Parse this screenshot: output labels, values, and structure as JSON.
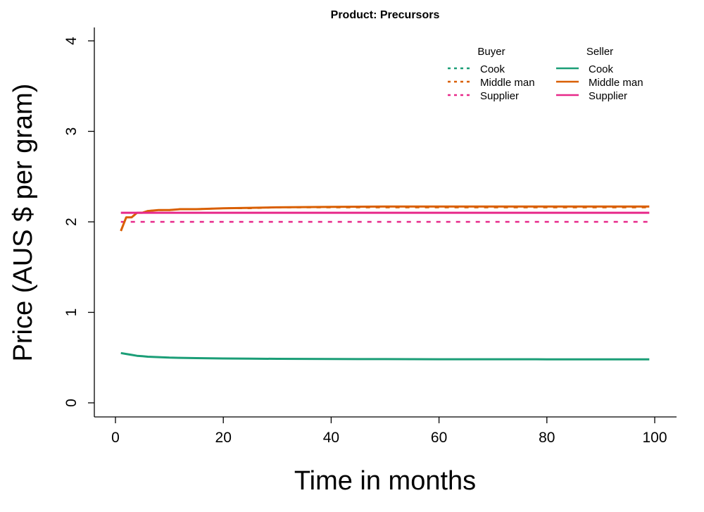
{
  "chart_data": {
    "type": "line",
    "title": "Product: Precursors",
    "xlabel": "Time in months",
    "ylabel": "Price (AUS $ per gram)",
    "xlim": [
      0,
      100
    ],
    "ylim": [
      0,
      4
    ],
    "xticks": [
      "0",
      "20",
      "40",
      "60",
      "80",
      "100"
    ],
    "yticks": [
      "0",
      "1",
      "2",
      "3",
      "4"
    ],
    "grid": false,
    "legend": {
      "placement": "top-right",
      "groups": [
        {
          "title": "Buyer",
          "style": "dotted",
          "entries": [
            "Cook",
            "Middle man",
            "Supplier"
          ]
        },
        {
          "title": "Seller",
          "style": "solid",
          "entries": [
            "Cook",
            "Middle man",
            "Supplier"
          ]
        }
      ]
    },
    "colors": {
      "Cook": "#1b9e77",
      "Middle man": "#d95f02",
      "Supplier": "#e7298a"
    },
    "series": [
      {
        "name": "Cook",
        "role": "Buyer",
        "style": "dotted",
        "color": "#1b9e77",
        "x": [],
        "y": []
      },
      {
        "name": "Middle man",
        "role": "Buyer",
        "style": "dotted",
        "color": "#d95f02",
        "x": [
          1,
          2,
          3,
          4,
          5,
          6,
          8,
          10,
          12,
          15,
          20,
          25,
          30,
          40,
          50,
          60,
          70,
          80,
          90,
          99
        ],
        "y": [
          1.9,
          2.05,
          2.05,
          2.1,
          2.1,
          2.12,
          2.13,
          2.13,
          2.14,
          2.14,
          2.15,
          2.15,
          2.16,
          2.16,
          2.16,
          2.16,
          2.16,
          2.16,
          2.16,
          2.16
        ]
      },
      {
        "name": "Supplier",
        "role": "Buyer",
        "style": "dotted",
        "color": "#e7298a",
        "x": [
          1,
          99
        ],
        "y": [
          2.0,
          2.0
        ]
      },
      {
        "name": "Cook",
        "role": "Seller",
        "style": "solid",
        "color": "#1b9e77",
        "x": [
          1,
          2,
          3,
          4,
          5,
          6,
          8,
          10,
          12,
          15,
          20,
          25,
          30,
          40,
          50,
          60,
          70,
          80,
          90,
          99
        ],
        "y": [
          0.55,
          0.54,
          0.53,
          0.52,
          0.515,
          0.51,
          0.505,
          0.5,
          0.497,
          0.494,
          0.49,
          0.488,
          0.486,
          0.484,
          0.483,
          0.482,
          0.482,
          0.481,
          0.481,
          0.48
        ]
      },
      {
        "name": "Middle man",
        "role": "Seller",
        "style": "solid",
        "color": "#d95f02",
        "x": [
          1,
          2,
          3,
          4,
          5,
          6,
          8,
          10,
          12,
          15,
          20,
          25,
          30,
          40,
          50,
          60,
          70,
          80,
          90,
          99
        ],
        "y": [
          1.9,
          2.05,
          2.05,
          2.1,
          2.1,
          2.12,
          2.13,
          2.13,
          2.14,
          2.14,
          2.15,
          2.155,
          2.16,
          2.165,
          2.17,
          2.17,
          2.17,
          2.17,
          2.17,
          2.17
        ]
      },
      {
        "name": "Supplier",
        "role": "Seller",
        "style": "solid",
        "color": "#e7298a",
        "x": [
          1,
          5,
          14,
          30,
          50,
          70,
          99
        ],
        "y": [
          2.1,
          2.1,
          2.1,
          2.1,
          2.1,
          2.1,
          2.1
        ]
      }
    ]
  }
}
